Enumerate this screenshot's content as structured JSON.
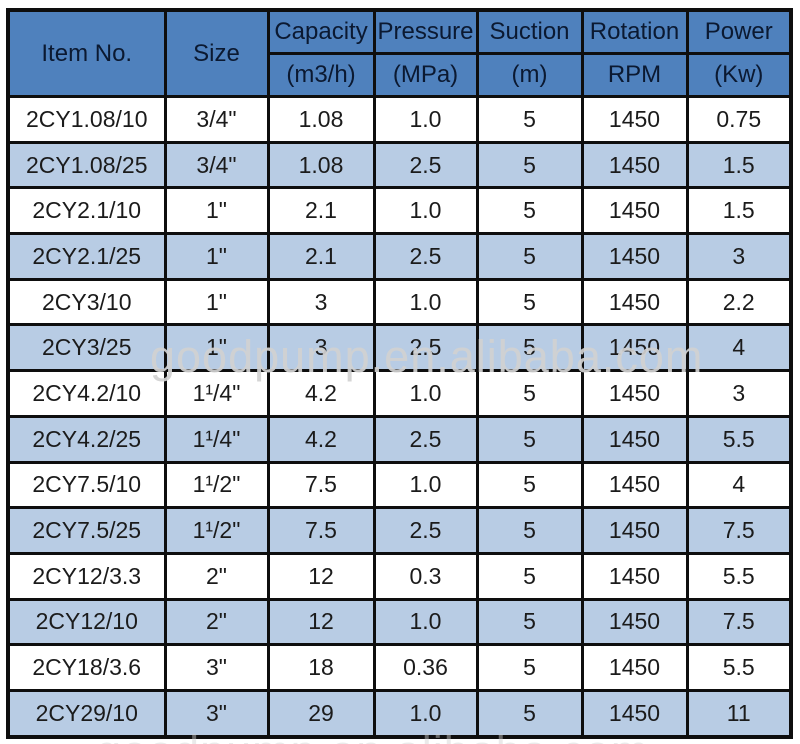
{
  "table": {
    "header": {
      "item_no": "Item No.",
      "size": "Size",
      "columns": [
        {
          "label": "Capacity",
          "unit": "(m3/h)"
        },
        {
          "label": "Pressure",
          "unit": "(MPa)"
        },
        {
          "label": "Suction",
          "unit": "(m)"
        },
        {
          "label": "Rotation",
          "unit": "RPM"
        },
        {
          "label": "Power",
          "unit": "(Kw)"
        }
      ]
    },
    "rows": [
      [
        "2CY1.08/10",
        "3/4\"",
        "1.08",
        "1.0",
        "5",
        "1450",
        "0.75"
      ],
      [
        "2CY1.08/25",
        "3/4\"",
        "1.08",
        "2.5",
        "5",
        "1450",
        "1.5"
      ],
      [
        "2CY2.1/10",
        "1\"",
        "2.1",
        "1.0",
        "5",
        "1450",
        "1.5"
      ],
      [
        "2CY2.1/25",
        "1\"",
        "2.1",
        "2.5",
        "5",
        "1450",
        "3"
      ],
      [
        "2CY3/10",
        "1\"",
        "3",
        "1.0",
        "5",
        "1450",
        "2.2"
      ],
      [
        "2CY3/25",
        "1\"",
        "3",
        "2.5",
        "5",
        "1450",
        "4"
      ],
      [
        "2CY4.2/10",
        "1¹/4\"",
        "4.2",
        "1.0",
        "5",
        "1450",
        "3"
      ],
      [
        "2CY4.2/25",
        "1¹/4\"",
        "4.2",
        "2.5",
        "5",
        "1450",
        "5.5"
      ],
      [
        "2CY7.5/10",
        "1¹/2\"",
        "7.5",
        "1.0",
        "5",
        "1450",
        "4"
      ],
      [
        "2CY7.5/25",
        "1¹/2\"",
        "7.5",
        "2.5",
        "5",
        "1450",
        "7.5"
      ],
      [
        "2CY12/3.3",
        "2\"",
        "12",
        "0.3",
        "5",
        "1450",
        "5.5"
      ],
      [
        "2CY12/10",
        "2\"",
        "12",
        "1.0",
        "5",
        "1450",
        "7.5"
      ],
      [
        "2CY18/3.6",
        "3\"",
        "18",
        "0.36",
        "5",
        "1450",
        "5.5"
      ],
      [
        "2CY29/10",
        "3\"",
        "29",
        "1.0",
        "5",
        "1450",
        "11"
      ]
    ]
  },
  "watermark": {
    "text": "goodpump.en.alibaba.com"
  },
  "colors": {
    "header_bg": "#4f81bd",
    "row_bg": "#ffffff",
    "row_alt_bg": "#b8cce4",
    "border": "#0e0e0e"
  }
}
